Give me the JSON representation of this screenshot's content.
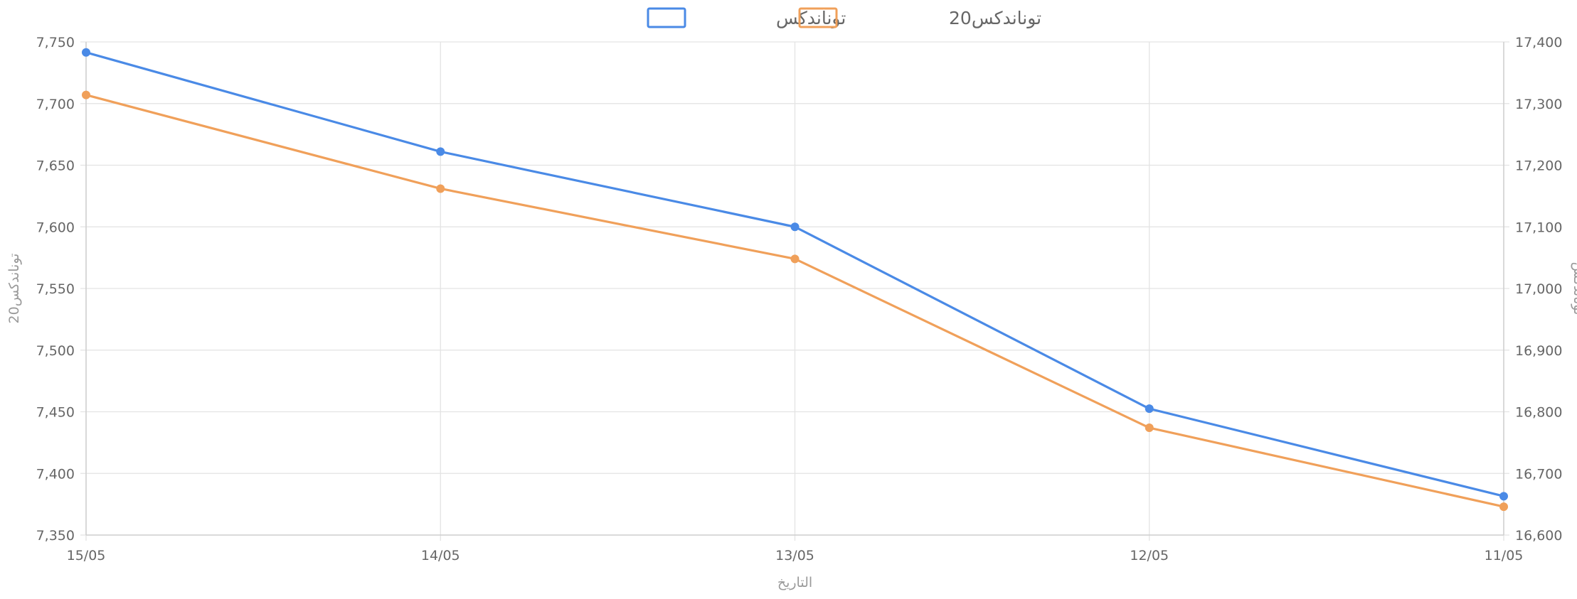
{
  "chart_data": {
    "type": "line",
    "categories": [
      "15/05",
      "14/05",
      "13/05",
      "12/05",
      "11/05"
    ],
    "xlabel": "التاريخ",
    "y_left": {
      "label": "توناندكس20",
      "range": [
        7350,
        7750
      ],
      "ticks": [
        7750,
        7700,
        7650,
        7600,
        7550,
        7500,
        7450,
        7400,
        7350
      ]
    },
    "y_right": {
      "label": "توناندكس",
      "range": [
        16600,
        17400
      ],
      "ticks": [
        17400,
        17300,
        17200,
        17100,
        17000,
        16900,
        16800,
        16700,
        16600
      ]
    },
    "series": [
      {
        "name": "توناندكس",
        "axis": "right",
        "color": "#4a8ae6",
        "values": [
          17383,
          17222,
          17100,
          16805,
          16663
        ]
      },
      {
        "name": "توناندكس20",
        "axis": "left",
        "color": "#f0a05a",
        "values": [
          7707,
          7631,
          7574,
          7437,
          7373
        ]
      }
    ],
    "legend_position": "top-center",
    "grid": true
  }
}
